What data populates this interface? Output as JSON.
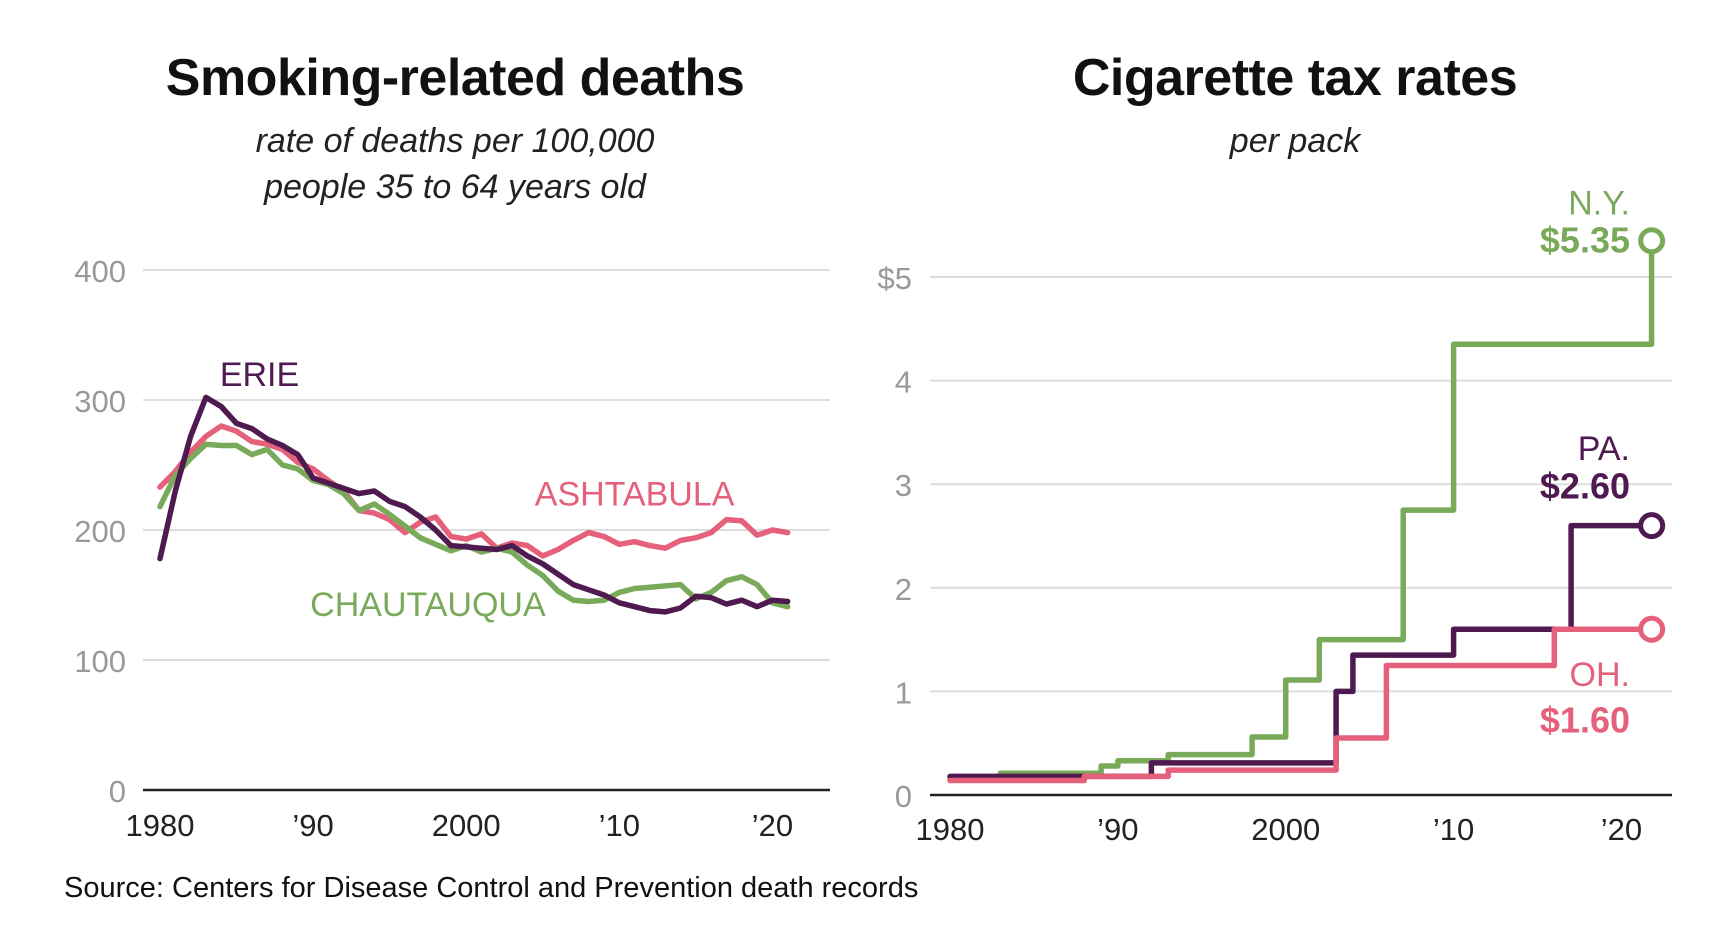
{
  "colors": {
    "erie": "#4e1a4f",
    "ashtabula": "#e5607a",
    "chautauqua": "#79aa5a",
    "ny": "#79aa5a",
    "pa": "#4e1a4f",
    "oh": "#e5607a",
    "grid": "#dddddd",
    "axis": "#222222",
    "tick": "#999999"
  },
  "source": "Source: Centers for Disease Control and Prevention death records",
  "chart_data": [
    {
      "type": "line",
      "title": "Smoking-related deaths",
      "subtitle_lines": [
        "rate of deaths per 100,000",
        "people 35 to 64 years old"
      ],
      "xlim": [
        1980,
        2022
      ],
      "ylim": [
        0,
        400
      ],
      "grid": true,
      "x_ticks": [
        {
          "value": 1980,
          "label": "1980"
        },
        {
          "value": 1990,
          "label": "’90"
        },
        {
          "value": 2000,
          "label": "2000"
        },
        {
          "value": 2010,
          "label": "’10"
        },
        {
          "value": 2020,
          "label": "’20"
        }
      ],
      "y_ticks": [
        {
          "value": 0,
          "label": "0"
        },
        {
          "value": 100,
          "label": "100"
        },
        {
          "value": 200,
          "label": "200"
        },
        {
          "value": 300,
          "label": "300"
        },
        {
          "value": 400,
          "label": "400"
        }
      ],
      "x": [
        1980,
        1981,
        1982,
        1983,
        1984,
        1985,
        1986,
        1987,
        1988,
        1989,
        1990,
        1991,
        1992,
        1993,
        1994,
        1995,
        1996,
        1997,
        1998,
        1999,
        2000,
        2001,
        2002,
        2003,
        2004,
        2005,
        2006,
        2007,
        2008,
        2009,
        2010,
        2011,
        2012,
        2013,
        2014,
        2015,
        2016,
        2017,
        2018,
        2019,
        2020,
        2021
      ],
      "series": [
        {
          "name": "ASHTABULA",
          "color_key": "ashtabula",
          "label_x": 2011.0,
          "label_y": 228,
          "values": [
            233,
            245,
            260,
            272,
            280,
            276,
            268,
            266,
            262,
            252,
            247,
            238,
            230,
            215,
            213,
            208,
            198,
            206,
            210,
            195,
            193,
            197,
            186,
            190,
            188,
            180,
            185,
            192,
            198,
            195,
            189,
            191,
            188,
            186,
            192,
            194,
            198,
            208,
            207,
            196,
            200,
            198
          ]
        },
        {
          "name": "CHAUTAUQUA",
          "color_key": "chautauqua",
          "label_x": 1997.5,
          "label_y": 143,
          "values": [
            218,
            242,
            255,
            266,
            265,
            265,
            258,
            262,
            250,
            247,
            238,
            235,
            228,
            215,
            220,
            212,
            203,
            194,
            189,
            184,
            188,
            183,
            186,
            183,
            173,
            165,
            153,
            146,
            145,
            146,
            152,
            155,
            156,
            157,
            158,
            147,
            152,
            161,
            164,
            158,
            144,
            141
          ]
        },
        {
          "name": "ERIE",
          "color_key": "erie",
          "label_x": 1986.5,
          "label_y": 320,
          "values": [
            178,
            230,
            272,
            302,
            295,
            282,
            278,
            270,
            265,
            258,
            240,
            236,
            232,
            228,
            230,
            222,
            218,
            210,
            200,
            188,
            187,
            186,
            185,
            188,
            180,
            174,
            166,
            158,
            154,
            150,
            144,
            141,
            138,
            137,
            140,
            149,
            148,
            143,
            146,
            141,
            146,
            145
          ]
        }
      ]
    },
    {
      "type": "line",
      "title": "Cigarette tax rates",
      "subtitle": "per pack",
      "xlim": [
        1980,
        2022
      ],
      "ylim": [
        0,
        5.35
      ],
      "grid": true,
      "x_ticks": [
        {
          "value": 1980,
          "label": "1980"
        },
        {
          "value": 1990,
          "label": "’90"
        },
        {
          "value": 2000,
          "label": "2000"
        },
        {
          "value": 2010,
          "label": "’10"
        },
        {
          "value": 2020,
          "label": "’20"
        }
      ],
      "y_ticks": [
        {
          "value": 0,
          "label": "0"
        },
        {
          "value": 1,
          "label": "1"
        },
        {
          "value": 2,
          "label": "2"
        },
        {
          "value": 3,
          "label": "3"
        },
        {
          "value": 4,
          "label": "4"
        },
        {
          "value": 5,
          "label": "$5"
        }
      ],
      "step": true,
      "series": [
        {
          "name": "N.Y.",
          "value_label": "$5.35",
          "color_key": "ny",
          "name_y": 5.72,
          "value_y": 5.35,
          "x": [
            1980,
            1982,
            1983,
            1988,
            1989,
            1990,
            1992,
            1993,
            1998,
            1999,
            2000,
            2001,
            2002,
            2006,
            2007,
            2008,
            2009,
            2010,
            2011,
            2021,
            2021.8
          ],
          "values": [
            0.15,
            0.15,
            0.21,
            0.21,
            0.28,
            0.33,
            0.33,
            0.39,
            0.56,
            0.56,
            1.11,
            1.11,
            1.5,
            1.5,
            2.75,
            2.75,
            2.75,
            4.35,
            4.35,
            4.35,
            5.35
          ]
        },
        {
          "name": "PA.",
          "value_label": "$2.60",
          "color_key": "pa",
          "name_y": 3.35,
          "value_y": 2.98,
          "x": [
            1980,
            1991,
            1992,
            2002,
            2003,
            2004,
            2009,
            2010,
            2016,
            2017,
            2021.8
          ],
          "values": [
            0.18,
            0.18,
            0.31,
            0.31,
            1.0,
            1.35,
            1.35,
            1.6,
            1.6,
            2.6,
            2.6
          ]
        },
        {
          "name": "OH.",
          "value_label": "$1.60",
          "color_key": "oh",
          "name_y": 1.17,
          "value_y": 0.72,
          "x": [
            1980,
            1982,
            1987,
            1988,
            1992,
            1993,
            2002,
            2003,
            2005,
            2006,
            2015,
            2016,
            2021.8
          ],
          "values": [
            0.14,
            0.14,
            0.14,
            0.18,
            0.18,
            0.24,
            0.24,
            0.55,
            0.55,
            1.25,
            1.25,
            1.6,
            1.6
          ]
        }
      ]
    }
  ]
}
